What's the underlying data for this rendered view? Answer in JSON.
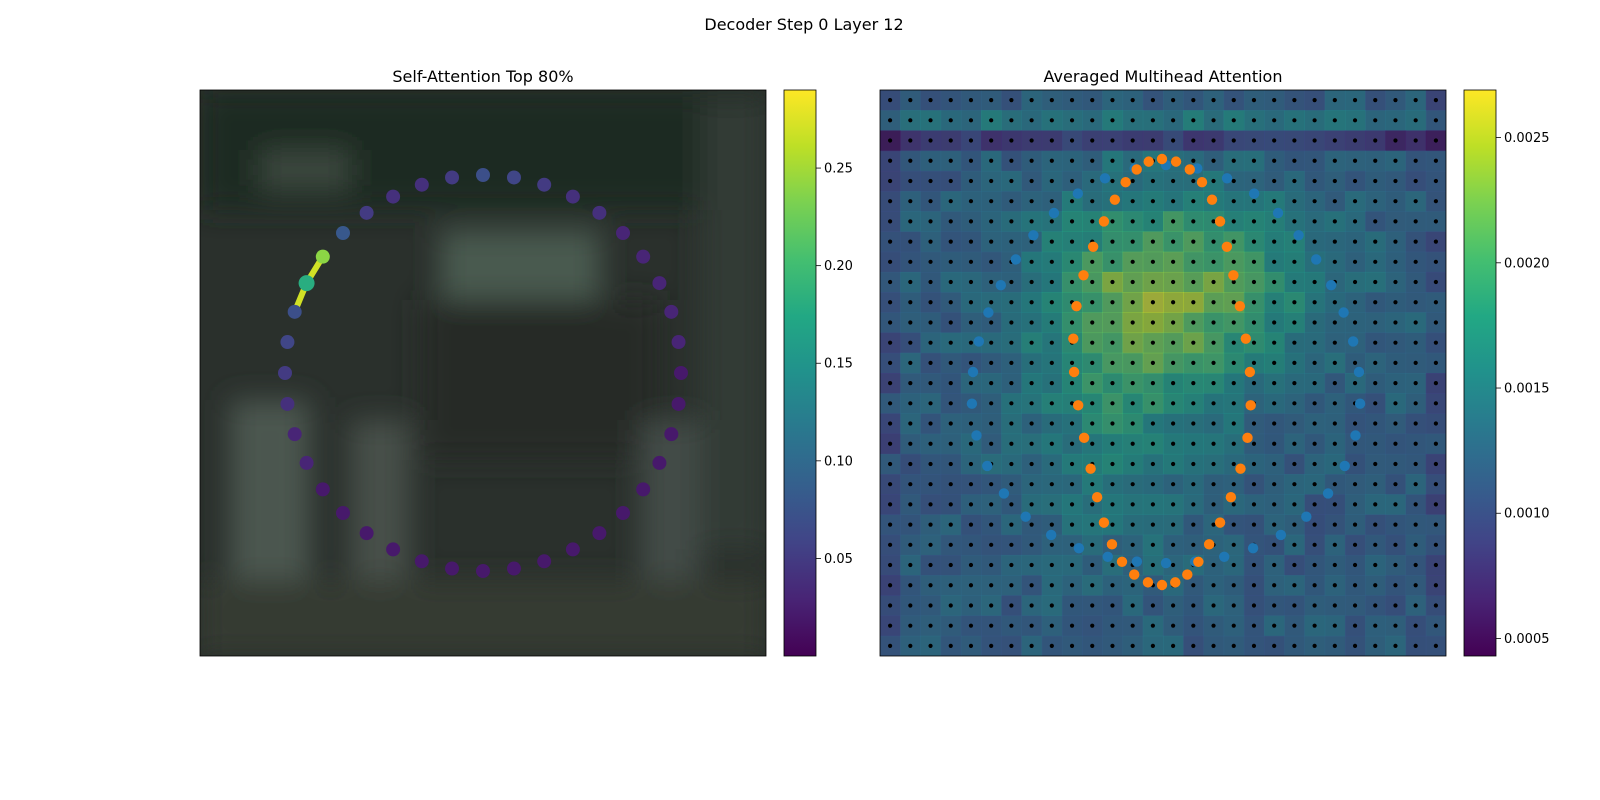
{
  "suptitle": "Decoder Step 0 Layer 12",
  "colors": {
    "orange_points": "#ff7f0e",
    "blue_points": "#1f77b4",
    "grid_dots": "#000000"
  },
  "chart_data": [
    {
      "type": "scatter",
      "title": "Self-Attention Top 80%",
      "background": "blurred dark photo (image patch)",
      "colormap": "viridis",
      "colorbar": {
        "range": [
          0.0,
          0.29
        ],
        "ticks": [
          0.05,
          0.1,
          0.15,
          0.2,
          0.25
        ],
        "tick_labels": [
          "0.05",
          "0.10",
          "0.15",
          "0.20",
          "0.25"
        ]
      },
      "shape": "circle of control points",
      "num_points": 40,
      "point_attention": [
        0.07,
        0.06,
        0.05,
        0.04,
        0.04,
        0.03,
        0.03,
        0.03,
        0.03,
        0.03,
        0.02,
        0.02,
        0.02,
        0.02,
        0.02,
        0.02,
        0.02,
        0.02,
        0.02,
        0.02,
        0.02,
        0.02,
        0.02,
        0.02,
        0.02,
        0.02,
        0.02,
        0.03,
        0.03,
        0.04,
        0.05,
        0.06,
        0.07,
        0.18,
        0.24,
        0.08,
        0.05,
        0.04,
        0.04,
        0.05
      ],
      "query_point_index": 33,
      "highlighted_links": [
        {
          "from": 33,
          "to": 34,
          "weight": 0.27
        },
        {
          "from": 33,
          "to": 32,
          "weight": 0.27
        }
      ]
    },
    {
      "type": "heatmap",
      "title": "Averaged Multihead Attention",
      "colormap": "viridis",
      "grid_size": [
        28,
        28
      ],
      "colorbar": {
        "range": [
          0.00043,
          0.00269
        ],
        "ticks": [
          0.0005,
          0.001,
          0.0015,
          0.002,
          0.0025
        ],
        "tick_labels": [
          "0.0005",
          "0.0010",
          "0.0015",
          "0.0020",
          "0.0025"
        ]
      },
      "overlay_points": {
        "blue": "outer ring of control points (approx. ellipse)",
        "orange": "inner ring of control points (approx. ellipse)"
      }
    }
  ]
}
